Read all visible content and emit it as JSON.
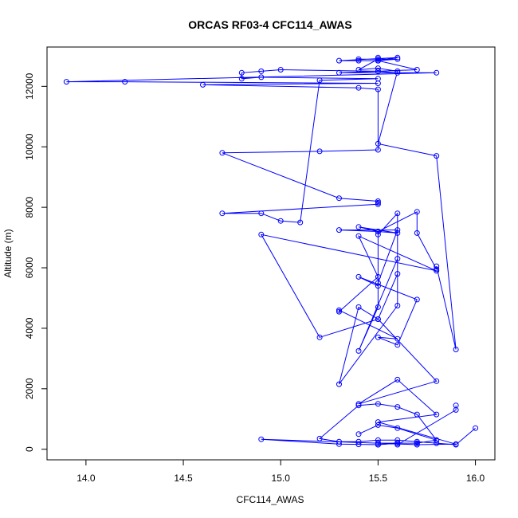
{
  "chart_data": {
    "type": "line",
    "title": "ORCAS RF03-4 CFC114_AWAS",
    "xlabel": "CFC114_AWAS",
    "ylabel": "Altitude (m)",
    "xlim": [
      13.8,
      16.1
    ],
    "ylim": [
      -350,
      13300
    ],
    "x_ticks": [
      14.0,
      14.5,
      15.0,
      15.5,
      16.0
    ],
    "x_tick_labels": [
      "14.0",
      "14.5",
      "15.0",
      "15.5",
      "16.0"
    ],
    "y_ticks": [
      0,
      2000,
      4000,
      6000,
      8000,
      10000,
      12000
    ],
    "y_tick_labels": [
      "0",
      "2000",
      "4000",
      "6000",
      "8000",
      "10000",
      "12000"
    ],
    "color": "#0000ff",
    "marker": "open-circle",
    "grid": false,
    "legend": "none",
    "series": [
      {
        "x": [
          15.9,
          15.9,
          15.6,
          15.6,
          15.5,
          15.5,
          15.7,
          15.9,
          15.5,
          15.8,
          15.6,
          15.4,
          15.8,
          15.5,
          15.2,
          14.9,
          15.8,
          15.4,
          15.5,
          15.3,
          15.3,
          15.6,
          15.5,
          15.6,
          15.7,
          15.4,
          15.5,
          15.5,
          15.6,
          15.4,
          15.5,
          15.3,
          15.6,
          15.5,
          15.5,
          15.4,
          15.6,
          15.6,
          15.5,
          15.4,
          15.3,
          15.6,
          15.6,
          15.5,
          15.5,
          15.7,
          15.7,
          15.8,
          15.8,
          15.9,
          15.8,
          15.5,
          15.6,
          15.5,
          15.4,
          15.5,
          15.5,
          15.5,
          15.5,
          15.5,
          15.6,
          15.4,
          15.4,
          15.5,
          15.5,
          15.6,
          15.3,
          15.5,
          15.7,
          15.5,
          15.3,
          15.8,
          13.9,
          14.2,
          15.5,
          14.6,
          15.4,
          15.5,
          15.5,
          15.2,
          14.7,
          15.3,
          15.5,
          15.5,
          15.5,
          14.7,
          14.9,
          15.0,
          15.1,
          15.2,
          15.5,
          14.9,
          14.8,
          14.8,
          14.9,
          15.0,
          15.5,
          15.6
        ],
        "y": [
          1450,
          1300,
          150,
          200,
          150,
          200,
          150,
          170,
          900,
          1150,
          2300,
          1500,
          2250,
          4300,
          3700,
          7100,
          5900,
          7050,
          5700,
          4550,
          4600,
          3650,
          3700,
          3450,
          4950,
          5700,
          5400,
          7200,
          7150,
          7350,
          7200,
          7250,
          7250,
          5500,
          4700,
          3250,
          6300,
          5800,
          4300,
          4700,
          2150,
          4750,
          7800,
          7100,
          7200,
          7850,
          7150,
          5950,
          6050,
          3300,
          9700,
          10100,
          12500,
          12600,
          12550,
          12900,
          12950,
          12900,
          12850,
          12850,
          12900,
          12900,
          12850,
          12850,
          12850,
          12950,
          12850,
          12850,
          12550,
          12500,
          12450,
          12450,
          12150,
          12150,
          12100,
          12050,
          11950,
          11900,
          9900,
          9850,
          9800,
          8300,
          8200,
          8150,
          8100,
          7800,
          7800,
          7550,
          7500,
          12200,
          12250,
          12300,
          12250,
          12450,
          12500,
          12550,
          12500,
          12450
        ]
      },
      {
        "x": [
          16.0,
          15.9,
          15.8,
          15.7,
          15.6,
          15.5,
          15.4,
          15.3,
          15.2,
          15.4,
          15.5,
          15.6,
          15.7,
          15.8,
          15.7,
          15.6,
          15.5,
          15.4,
          15.3,
          14.9,
          15.5,
          15.6,
          15.7,
          15.8,
          15.6,
          15.5,
          15.4
        ],
        "y": [
          700,
          150,
          200,
          250,
          300,
          300,
          250,
          250,
          350,
          1450,
          1500,
          1400,
          1150,
          300,
          200,
          200,
          150,
          160,
          170,
          330,
          200,
          200,
          200,
          300,
          700,
          800,
          500
        ]
      }
    ]
  }
}
